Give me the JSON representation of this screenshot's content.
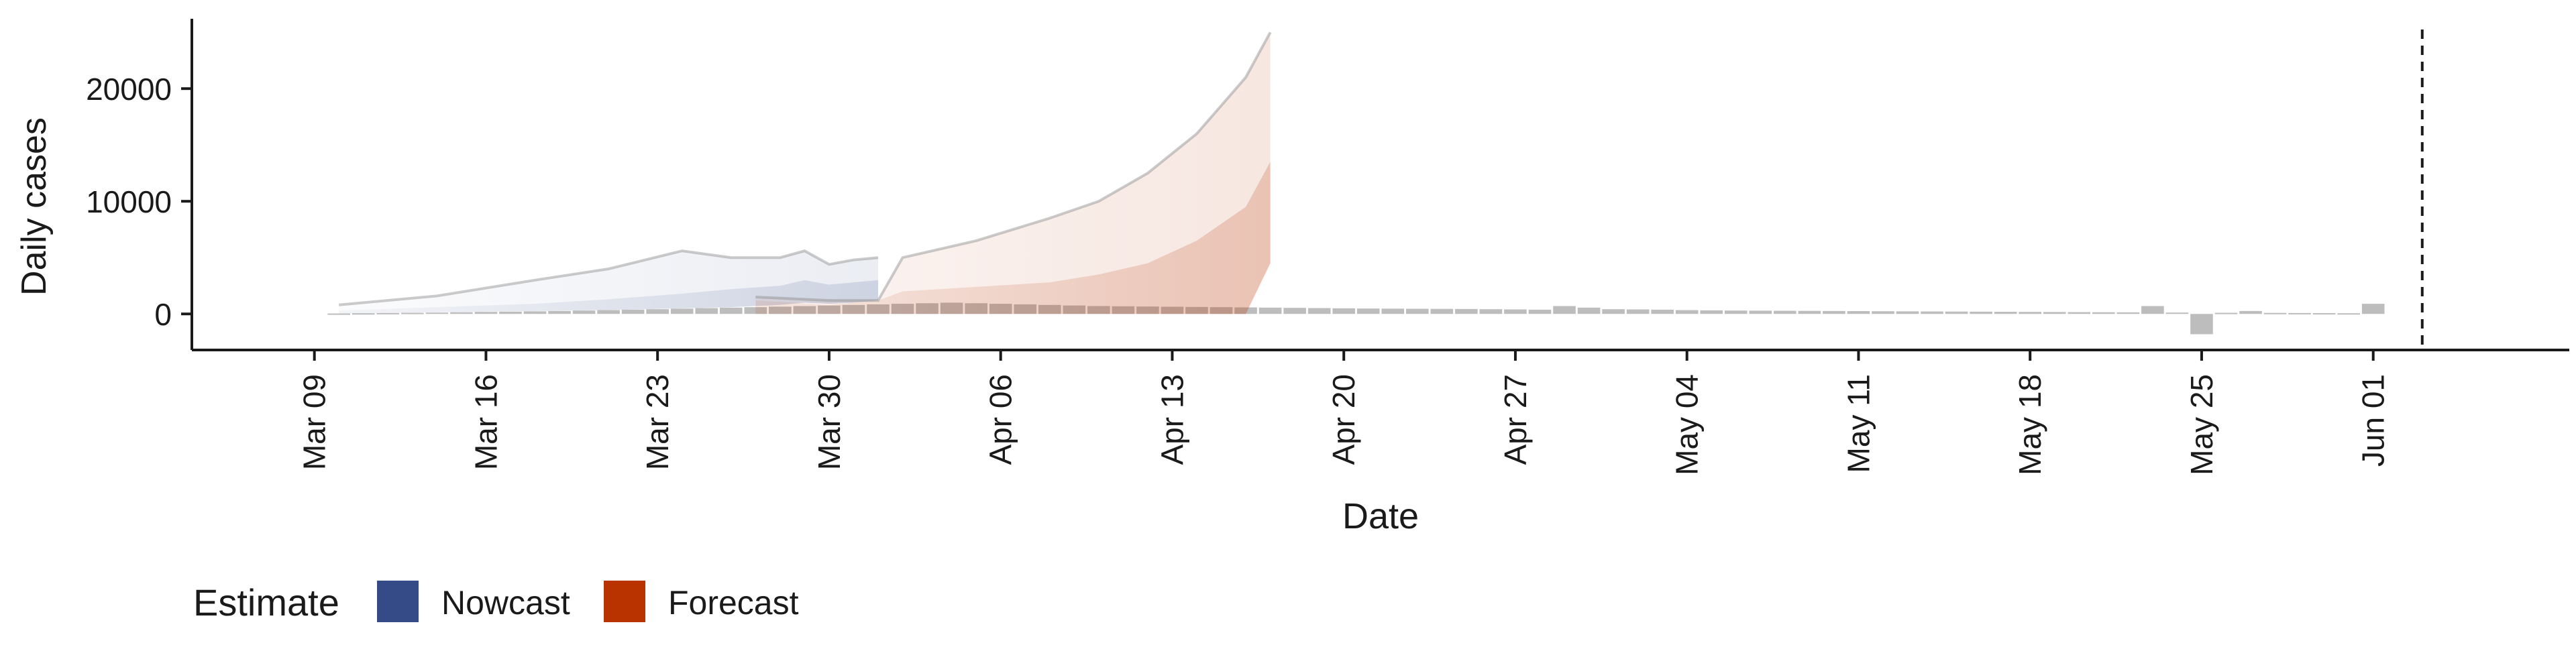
{
  "chart_data": {
    "type": "area",
    "xlabel": "Date",
    "ylabel": "Daily cases",
    "x_axis_type": "date",
    "x_range": [
      "2020-03-04",
      "2020-06-09"
    ],
    "y_range": [
      -3200,
      26200
    ],
    "y_ticks": [
      0,
      10000,
      20000
    ],
    "y_tick_labels": [
      "0",
      "10000",
      "20000"
    ],
    "x_ticks": [
      "2020-03-09",
      "2020-03-16",
      "2020-03-23",
      "2020-03-30",
      "2020-04-06",
      "2020-04-13",
      "2020-04-20",
      "2020-04-27",
      "2020-05-04",
      "2020-05-11",
      "2020-05-18",
      "2020-05-25",
      "2020-06-01"
    ],
    "x_tick_labels": [
      "Mar 09",
      "Mar 16",
      "Mar 23",
      "Mar 30",
      "Apr 06",
      "Apr 13",
      "Apr 20",
      "Apr 27",
      "May 04",
      "May 11",
      "May 18",
      "May 25",
      "Jun 01"
    ],
    "vline_date": "2020-06-03",
    "grid": false,
    "legend": {
      "title": "Estimate",
      "placement": "bottom-left",
      "items": [
        {
          "label": "Nowcast",
          "color": "#344b87"
        },
        {
          "label": "Forecast",
          "color": "#b83300"
        }
      ]
    },
    "colors": {
      "nowcast": "#344b87",
      "forecast": "#b83300",
      "bars": "#bdbdbd",
      "line": "#8c8c8c"
    },
    "series": [
      {
        "name": "Nowcast",
        "x": [
          "2020-03-10",
          "2020-03-14",
          "2020-03-18",
          "2020-03-21",
          "2020-03-24",
          "2020-03-26",
          "2020-03-28",
          "2020-03-29",
          "2020-03-30",
          "2020-03-31",
          "2020-04-01"
        ],
        "lower": [
          0,
          150,
          250,
          350,
          500,
          600,
          800,
          1000,
          900,
          1000,
          1200
        ],
        "median": [
          300,
          600,
          900,
          1300,
          1800,
          2200,
          2500,
          3000,
          2600,
          2800,
          3000
        ],
        "upper": [
          800,
          1600,
          3000,
          4000,
          5600,
          5000,
          5000,
          5600,
          4400,
          4800,
          5000
        ]
      },
      {
        "name": "Forecast",
        "x": [
          "2020-03-27",
          "2020-03-30",
          "2020-04-01",
          "2020-04-02",
          "2020-04-05",
          "2020-04-08",
          "2020-04-10",
          "2020-04-12",
          "2020-04-14",
          "2020-04-15",
          "2020-04-16",
          "2020-04-17"
        ],
        "lower": [
          0,
          0,
          0,
          0,
          0,
          0,
          0,
          0,
          0,
          0,
          0,
          4500
        ],
        "median": [
          1200,
          800,
          1200,
          2000,
          2400,
          2800,
          3500,
          4500,
          6500,
          8000,
          9500,
          13500
        ],
        "upper": [
          1500,
          1200,
          1200,
          5000,
          6500,
          8500,
          10000,
          12500,
          16000,
          18500,
          21000,
          25000
        ]
      }
    ],
    "bars": {
      "x": [
        "2020-03-10",
        "2020-03-11",
        "2020-03-12",
        "2020-03-13",
        "2020-03-14",
        "2020-03-15",
        "2020-03-16",
        "2020-03-17",
        "2020-03-18",
        "2020-03-19",
        "2020-03-20",
        "2020-03-21",
        "2020-03-22",
        "2020-03-23",
        "2020-03-24",
        "2020-03-25",
        "2020-03-26",
        "2020-03-27",
        "2020-03-28",
        "2020-03-29",
        "2020-03-30",
        "2020-03-31",
        "2020-04-01",
        "2020-04-02",
        "2020-04-03",
        "2020-04-04",
        "2020-04-05",
        "2020-04-06",
        "2020-04-07",
        "2020-04-08",
        "2020-04-09",
        "2020-04-10",
        "2020-04-11",
        "2020-04-12",
        "2020-04-13",
        "2020-04-14",
        "2020-04-15",
        "2020-04-16",
        "2020-04-17",
        "2020-04-18",
        "2020-04-19",
        "2020-04-20",
        "2020-04-21",
        "2020-04-22",
        "2020-04-23",
        "2020-04-24",
        "2020-04-25",
        "2020-04-26",
        "2020-04-27",
        "2020-04-28",
        "2020-04-29",
        "2020-04-30",
        "2020-05-01",
        "2020-05-02",
        "2020-05-03",
        "2020-05-04",
        "2020-05-05",
        "2020-05-06",
        "2020-05-07",
        "2020-05-08",
        "2020-05-09",
        "2020-05-10",
        "2020-05-11",
        "2020-05-12",
        "2020-05-13",
        "2020-05-14",
        "2020-05-15",
        "2020-05-16",
        "2020-05-17",
        "2020-05-18",
        "2020-05-19",
        "2020-05-20",
        "2020-05-21",
        "2020-05-22",
        "2020-05-23",
        "2020-05-24",
        "2020-05-25",
        "2020-05-26",
        "2020-05-27",
        "2020-05-28",
        "2020-05-29",
        "2020-05-30",
        "2020-05-31",
        "2020-06-01"
      ],
      "values": [
        40,
        60,
        80,
        100,
        120,
        150,
        180,
        200,
        230,
        260,
        300,
        340,
        380,
        420,
        470,
        520,
        560,
        600,
        650,
        700,
        750,
        800,
        850,
        900,
        950,
        1000,
        950,
        900,
        850,
        800,
        750,
        700,
        680,
        660,
        640,
        620,
        600,
        580,
        560,
        540,
        520,
        500,
        480,
        470,
        460,
        450,
        440,
        420,
        400,
        380,
        700,
        560,
        420,
        400,
        380,
        340,
        320,
        300,
        290,
        280,
        270,
        260,
        250,
        240,
        230,
        220,
        210,
        200,
        190,
        180,
        170,
        160,
        150,
        140,
        700,
        120,
        -1800,
        100,
        260,
        90,
        80,
        70,
        60,
        900
      ]
    }
  }
}
